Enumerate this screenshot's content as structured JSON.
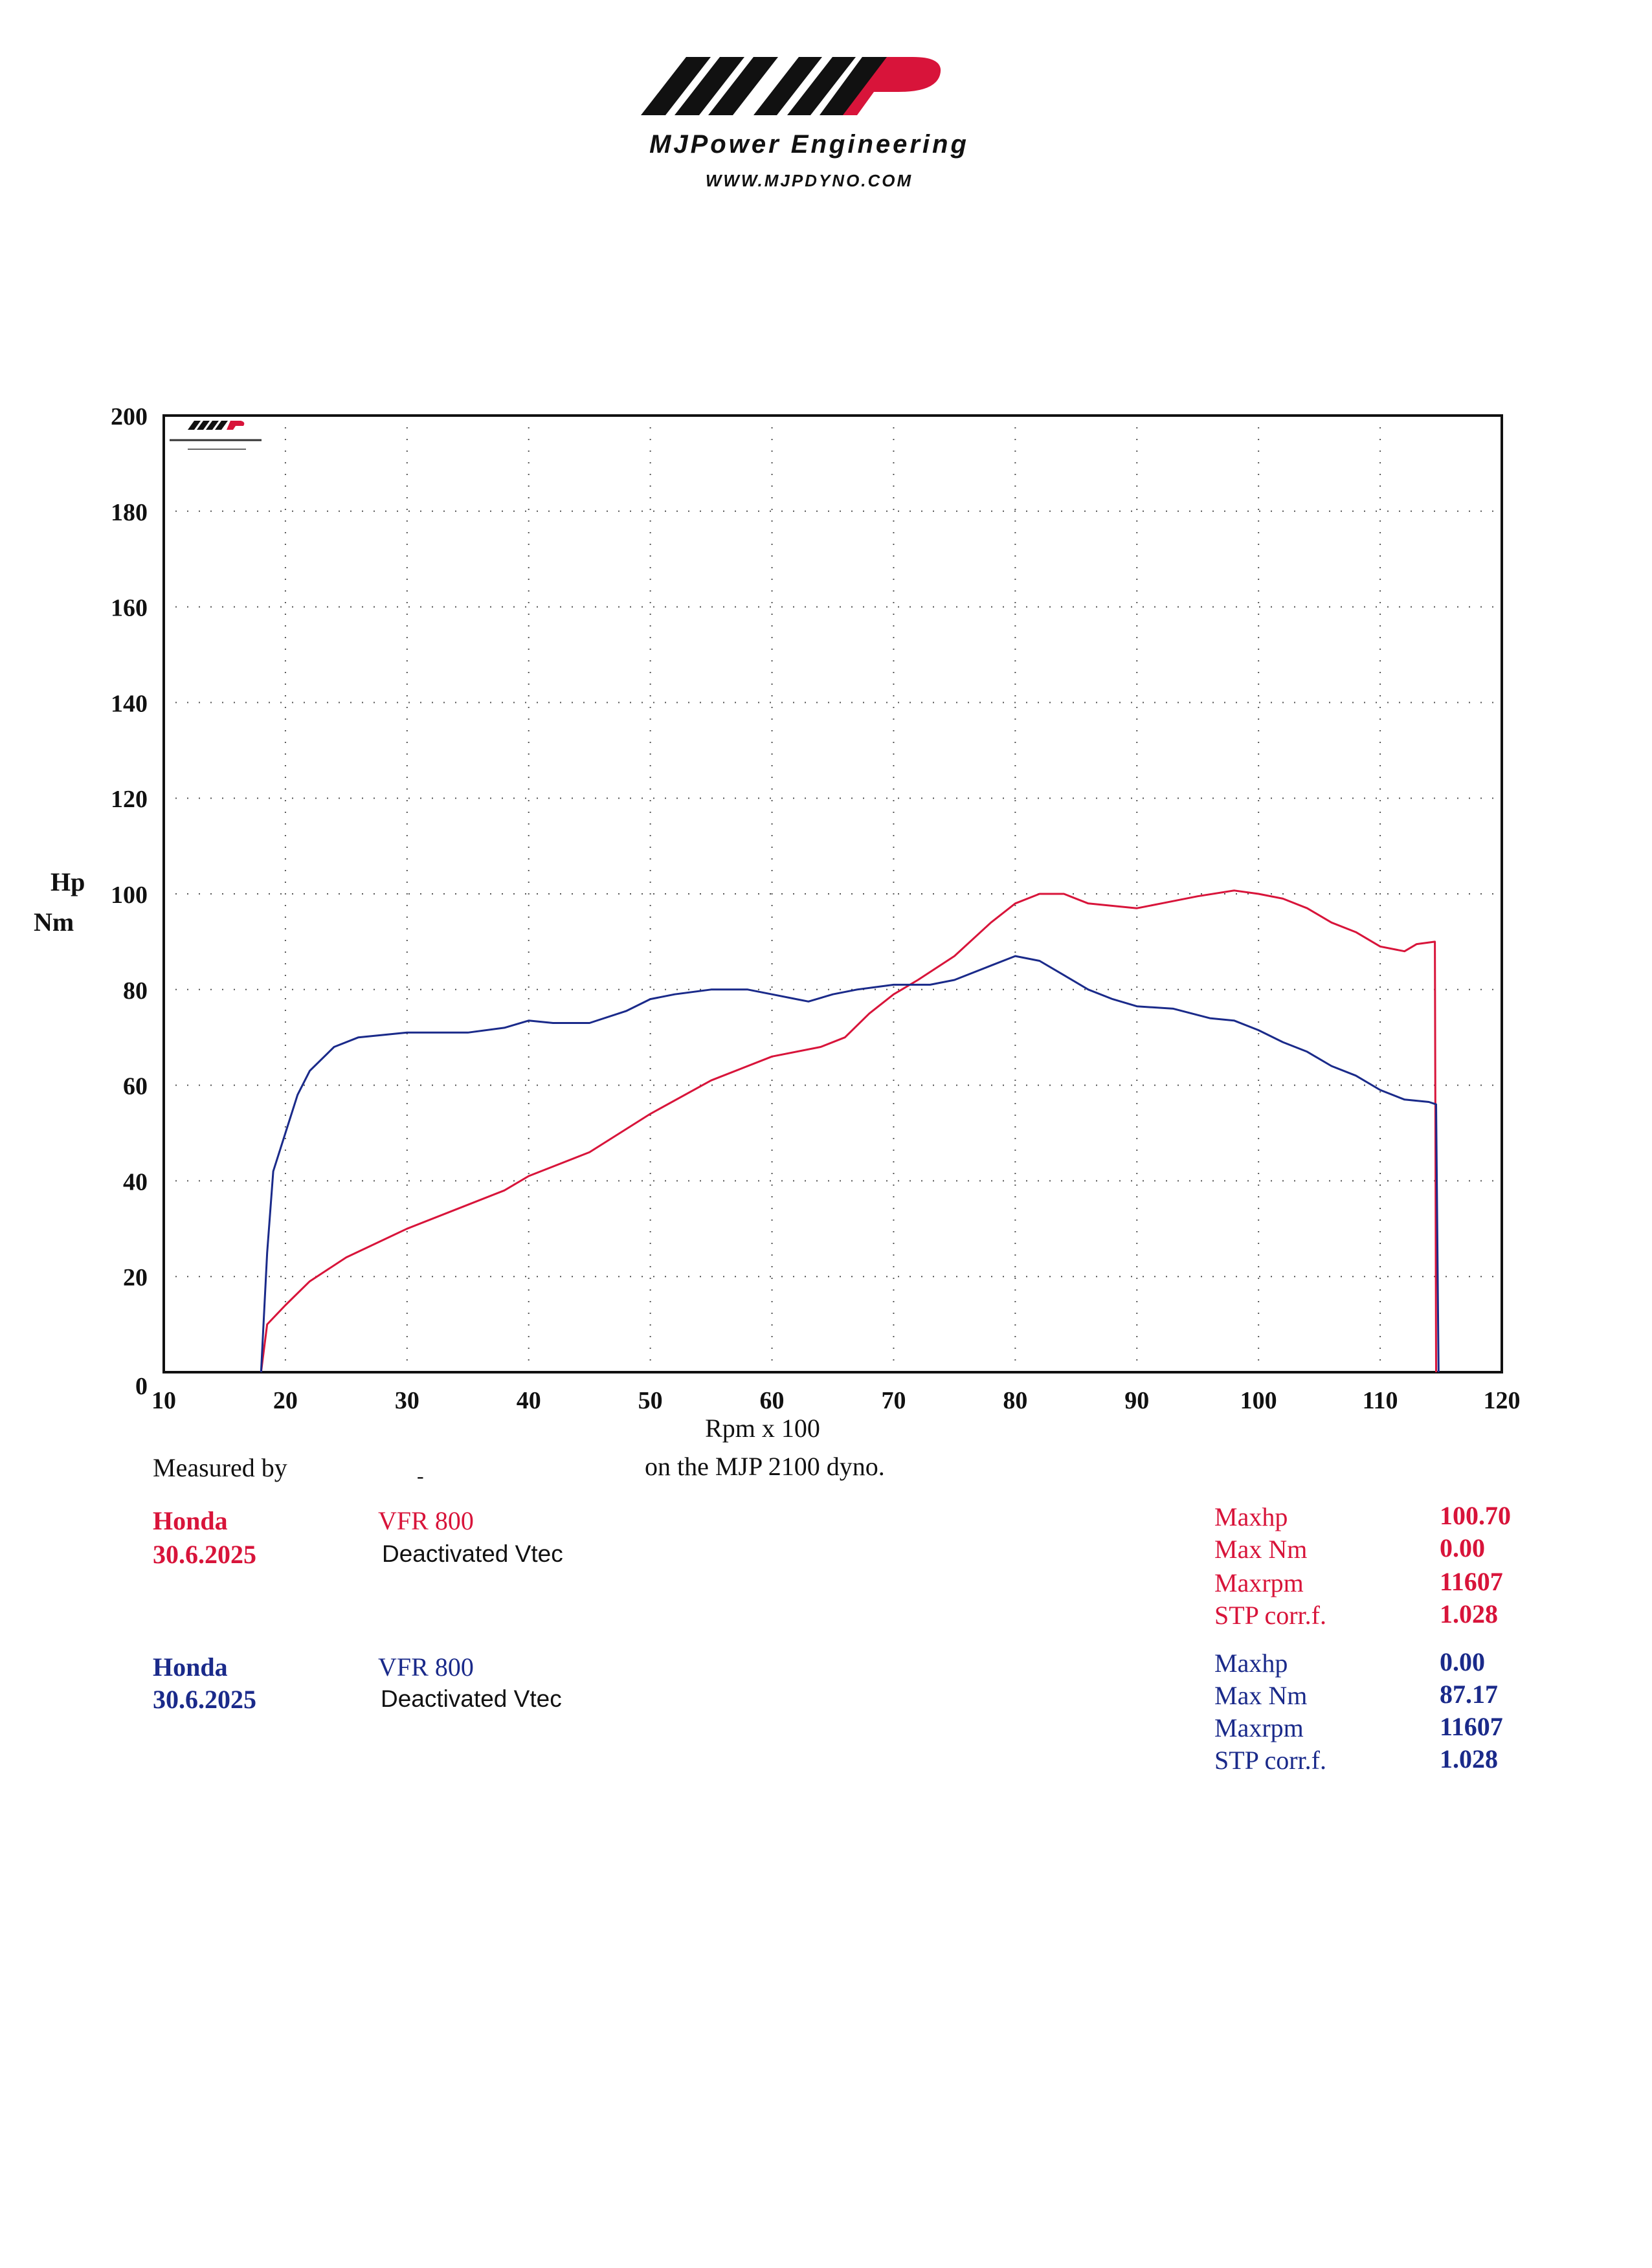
{
  "header": {
    "brand_name": "MJPower Engineering",
    "website": "WWW.MJPDYNO.COM",
    "logo_text": "MJP"
  },
  "colors": {
    "red_run": "#d8143a",
    "blue_run": "#1a2a8a",
    "grid": "#555555",
    "logo_red": "#d8143a",
    "logo_black": "#111111"
  },
  "chart_data": {
    "type": "line",
    "ylabel_lines": [
      "Hp",
      "Nm"
    ],
    "xlabel": "Rpm x 100",
    "xlim": [
      10,
      120
    ],
    "ylim": [
      0,
      200
    ],
    "x_ticks": [
      10,
      20,
      30,
      40,
      50,
      60,
      70,
      80,
      90,
      100,
      110,
      120
    ],
    "y_ticks": [
      0,
      20,
      40,
      60,
      80,
      100,
      120,
      140,
      160,
      180,
      200
    ],
    "grid": "dotted",
    "series": [
      {
        "color": "#d8143a",
        "points": [
          [
            18,
            0
          ],
          [
            18.5,
            10
          ],
          [
            20,
            14
          ],
          [
            22,
            19
          ],
          [
            25,
            24
          ],
          [
            30,
            30
          ],
          [
            35,
            35
          ],
          [
            38,
            38
          ],
          [
            40,
            41
          ],
          [
            45,
            46
          ],
          [
            50,
            54
          ],
          [
            55,
            61
          ],
          [
            60,
            66
          ],
          [
            64,
            68
          ],
          [
            66,
            70
          ],
          [
            68,
            75
          ],
          [
            70,
            79
          ],
          [
            72,
            82
          ],
          [
            75,
            87
          ],
          [
            78,
            94
          ],
          [
            80,
            98
          ],
          [
            82,
            100
          ],
          [
            84,
            100
          ],
          [
            86,
            98
          ],
          [
            88,
            97.5
          ],
          [
            90,
            97
          ],
          [
            92,
            98
          ],
          [
            95,
            99.5
          ],
          [
            98,
            100.7
          ],
          [
            100,
            100
          ],
          [
            102,
            99
          ],
          [
            104,
            97
          ],
          [
            106,
            94
          ],
          [
            108,
            92
          ],
          [
            110,
            89
          ],
          [
            112,
            88
          ],
          [
            113,
            89.5
          ],
          [
            114.5,
            90
          ],
          [
            114.6,
            0
          ]
        ]
      },
      {
        "color": "#1a2a8a",
        "points": [
          [
            18,
            0
          ],
          [
            18.5,
            25
          ],
          [
            19,
            42
          ],
          [
            20,
            50
          ],
          [
            21,
            58
          ],
          [
            22,
            63
          ],
          [
            24,
            68
          ],
          [
            26,
            70
          ],
          [
            30,
            71
          ],
          [
            35,
            71
          ],
          [
            38,
            72
          ],
          [
            40,
            73.5
          ],
          [
            42,
            73
          ],
          [
            45,
            73
          ],
          [
            48,
            75.5
          ],
          [
            50,
            78
          ],
          [
            52,
            79
          ],
          [
            55,
            80
          ],
          [
            58,
            80
          ],
          [
            60,
            79
          ],
          [
            62,
            78
          ],
          [
            63,
            77.5
          ],
          [
            65,
            79
          ],
          [
            67,
            80
          ],
          [
            70,
            81
          ],
          [
            73,
            81
          ],
          [
            75,
            82
          ],
          [
            78,
            85
          ],
          [
            80,
            87
          ],
          [
            82,
            86
          ],
          [
            84,
            83
          ],
          [
            86,
            80
          ],
          [
            88,
            78
          ],
          [
            90,
            76.5
          ],
          [
            93,
            76
          ],
          [
            96,
            74
          ],
          [
            98,
            73.5
          ],
          [
            100,
            71.5
          ],
          [
            102,
            69
          ],
          [
            104,
            67
          ],
          [
            106,
            64
          ],
          [
            108,
            62
          ],
          [
            110,
            59
          ],
          [
            112,
            57
          ],
          [
            114,
            56.5
          ],
          [
            114.6,
            56
          ],
          [
            114.8,
            0
          ]
        ]
      }
    ]
  },
  "measured": {
    "label": "Measured by",
    "dash": "-",
    "dyno_text": "on the MJP 2100 dyno."
  },
  "runs": [
    {
      "make": "Honda",
      "date": "30.6.2025",
      "model": "VFR 800",
      "note": "Deactivated Vtec",
      "stats": [
        {
          "label": "Maxhp",
          "value": "100.70"
        },
        {
          "label": "Max Nm",
          "value": "0.00"
        },
        {
          "label": "Maxrpm",
          "value": "11607"
        },
        {
          "label": "STP corr.f.",
          "value": "1.028"
        }
      ]
    },
    {
      "make": "Honda",
      "date": "30.6.2025",
      "model": "VFR 800",
      "note": "Deactivated Vtec",
      "stats": [
        {
          "label": "Maxhp",
          "value": "0.00"
        },
        {
          "label": "Max Nm",
          "value": "87.17"
        },
        {
          "label": "Maxrpm",
          "value": "11607"
        },
        {
          "label": "STP corr.f.",
          "value": "1.028"
        }
      ]
    }
  ]
}
